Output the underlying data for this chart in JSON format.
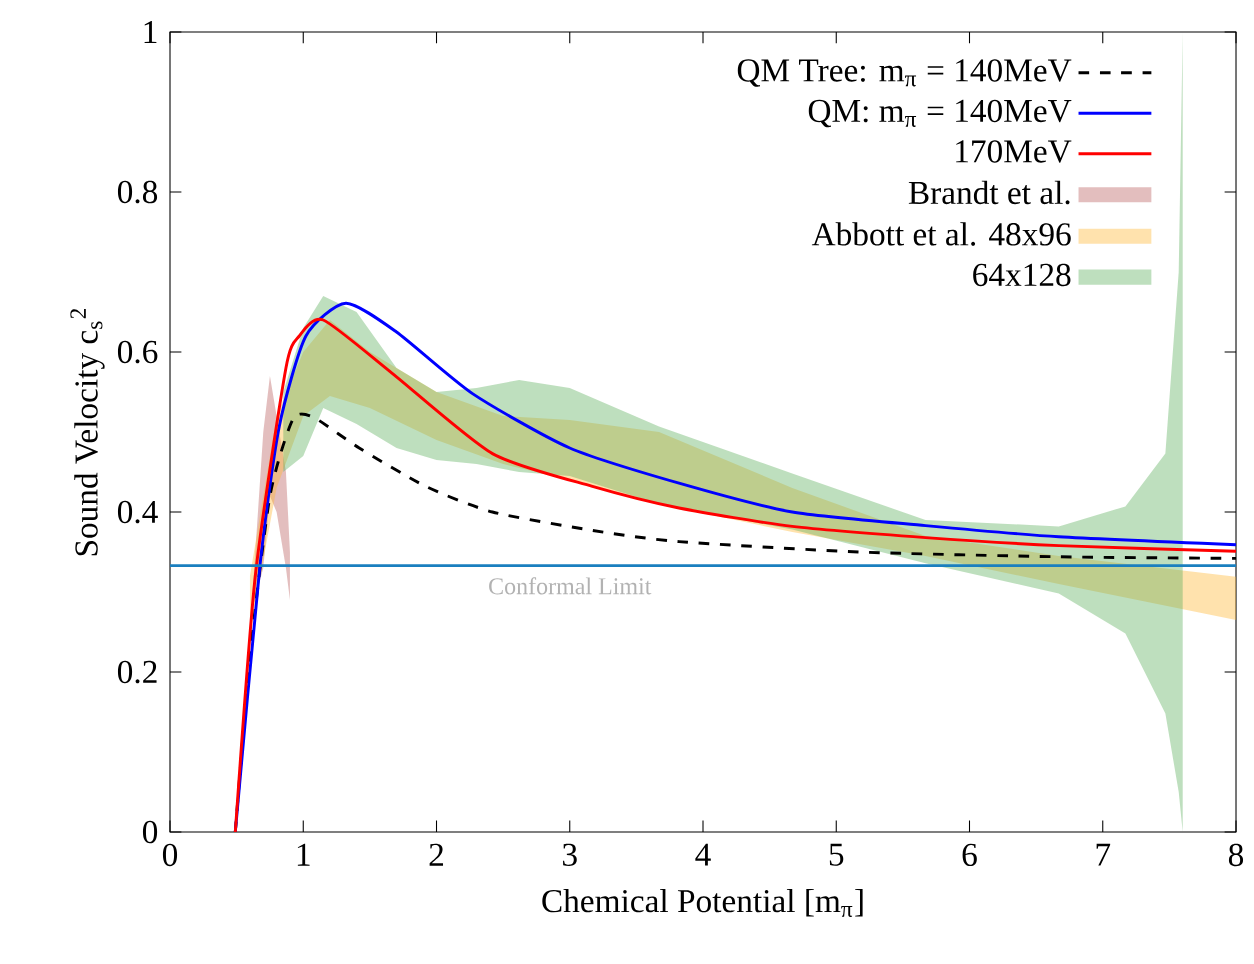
{
  "chart_data": {
    "type": "line",
    "xlabel": "Chemical Potential [m$_{π}$]",
    "ylabel": "Sound Velocity c$_{s}$$^{2}$",
    "xlim": [
      0,
      8
    ],
    "ylim": [
      0,
      1
    ],
    "xticks": [
      0,
      1,
      2,
      3,
      4,
      5,
      6,
      7,
      8
    ],
    "yticks": [
      0,
      0.2,
      0.4,
      0.6,
      0.8,
      1
    ],
    "legend": "top right",
    "grid": false,
    "marker": "none",
    "series": [
      {
        "name": "QM Tree: m$_{π}$ = 140MeV",
        "line_style": "dashed",
        "color": "#000000",
        "x": [
          0.49,
          0.6,
          0.75,
          0.92,
          1.07,
          1.42,
          1.92,
          2.42,
          3.17,
          3.82,
          5.17,
          6.67,
          8
        ],
        "values": [
          0,
          0.22,
          0.42,
          0.515,
          0.519,
          0.48,
          0.432,
          0.4,
          0.377,
          0.363,
          0.35,
          0.344,
          0.342
        ]
      },
      {
        "name": "QM: m$_{π}$ = 140MeV",
        "line_style": "solid",
        "color": "#0000ff",
        "x": [
          0.49,
          0.675,
          0.82,
          1.02,
          1.32,
          1.7,
          2.27,
          3.0,
          3.82,
          4.67,
          5.67,
          6.67,
          8
        ],
        "values": [
          0,
          0.333,
          0.507,
          0.62,
          0.661,
          0.625,
          0.548,
          0.48,
          0.436,
          0.4,
          0.383,
          0.369,
          0.359
        ]
      },
      {
        "name": "170MeV",
        "line_style": "solid",
        "color": "#ff0000",
        "x": [
          0.49,
          0.64,
          0.87,
          0.97,
          1.15,
          1.67,
          2.42,
          3.17,
          3.82,
          4.67,
          5.67,
          6.67,
          8
        ],
        "values": [
          0,
          0.32,
          0.58,
          0.62,
          0.64,
          0.573,
          0.473,
          0.432,
          0.405,
          0.382,
          0.368,
          0.358,
          0.351
        ]
      },
      {
        "name": "Brandt et al.",
        "type": "area",
        "color": "#b85c5c",
        "x": [
          0.62,
          0.7,
          0.75,
          0.8,
          0.87,
          0.9
        ],
        "values": [
          null,
          null,
          null,
          null,
          null,
          null
        ],
        "lower": [
          0.28,
          0.33,
          0.42,
          0.4,
          0.33,
          0.29
        ],
        "upper": [
          0.3,
          0.5,
          0.57,
          0.52,
          0.45,
          0.35
        ]
      },
      {
        "name": "Abbott et al. 48x96",
        "type": "area",
        "color": "#ffb733",
        "x": [
          0.6,
          0.8,
          1.0,
          1.2,
          1.5,
          2.0,
          2.5,
          3.0,
          3.67,
          4.67,
          5.67,
          6.67,
          8
        ],
        "values": [
          null,
          null,
          null,
          null,
          null,
          null,
          null,
          null,
          null,
          null,
          null,
          null,
          null
        ],
        "lower": [
          0.25,
          0.43,
          0.52,
          0.545,
          0.53,
          0.49,
          0.46,
          0.44,
          0.41,
          0.375,
          0.345,
          0.31,
          0.265
        ],
        "upper": [
          0.32,
          0.52,
          0.6,
          0.64,
          0.6,
          0.55,
          0.52,
          0.515,
          0.5,
          0.43,
          0.37,
          0.345,
          0.319
        ]
      },
      {
        "name": "64x128",
        "type": "area",
        "color": "#5cb05c",
        "x": [
          0.85,
          1.0,
          1.15,
          1.4,
          1.7,
          2.0,
          2.3,
          2.62,
          3.0,
          3.67,
          4.67,
          5.67,
          6.67,
          7.17,
          7.47,
          7.57,
          7.6
        ],
        "values": [
          null,
          null,
          null,
          null,
          null,
          null,
          null,
          null,
          null,
          null,
          null,
          null,
          null,
          null,
          null,
          null,
          null
        ],
        "lower": [
          0.45,
          0.47,
          0.53,
          0.51,
          0.48,
          0.465,
          0.46,
          0.45,
          0.445,
          0.41,
          0.378,
          0.336,
          0.298,
          0.248,
          0.148,
          0.05,
          0
        ],
        "upper": [
          0.55,
          0.63,
          0.67,
          0.65,
          0.58,
          0.55,
          0.555,
          0.565,
          0.555,
          0.507,
          0.448,
          0.39,
          0.382,
          0.407,
          0.473,
          0.7,
          1.0
        ]
      }
    ],
    "ref_lines": [
      {
        "axis": "y",
        "value": 0.333,
        "label": "Conformal Limit",
        "color": "#1a7fbf"
      }
    ]
  }
}
